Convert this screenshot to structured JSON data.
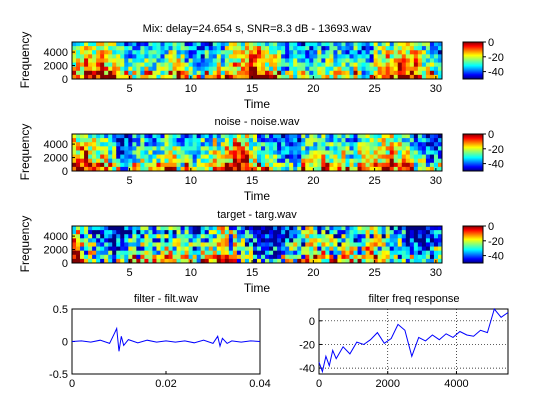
{
  "spectrograms": [
    {
      "title": "Mix: delay=24.654 s, SNR=8.3 dB - 13693.wav",
      "ylabel": "Frequency",
      "xlabel": "Time",
      "x_ticks": [
        "5",
        "10",
        "15",
        "20",
        "25",
        "30"
      ],
      "y_ticks": [
        "4000",
        "2000",
        "0"
      ],
      "colorbar_ticks": [
        "0",
        "-20",
        "-40"
      ]
    },
    {
      "title": "noise - noise.wav",
      "ylabel": "Frequency",
      "xlabel": "Time",
      "x_ticks": [
        "5",
        "10",
        "15",
        "20",
        "25",
        "30"
      ],
      "y_ticks": [
        "4000",
        "2000",
        "0"
      ],
      "colorbar_ticks": [
        "0",
        "-20",
        "-40"
      ]
    },
    {
      "title": "target - targ.wav",
      "ylabel": "Frequency",
      "xlabel": "Time",
      "x_ticks": [
        "5",
        "10",
        "15",
        "20",
        "25",
        "30"
      ],
      "y_ticks": [
        "4000",
        "2000",
        "0"
      ],
      "colorbar_ticks": [
        "0",
        "-20",
        "-40"
      ]
    }
  ],
  "filter_plot": {
    "title": "filter - filt.wav",
    "x_ticks": [
      "0",
      "0.02",
      "0.04"
    ],
    "y_ticks": [
      "0.5",
      "0",
      "-0.5"
    ]
  },
  "freq_plot": {
    "title": "filter freq response",
    "x_ticks": [
      "0",
      "2000",
      "4000"
    ],
    "y_ticks": [
      "0",
      "-20",
      "-40"
    ]
  },
  "colors": {
    "line": "#0000ff",
    "axes": "#000000",
    "background": "#ffffff"
  },
  "chart_data": [
    {
      "type": "heatmap",
      "title": "Mix: delay=24.654 s, SNR=8.3 dB - 13693.wav",
      "xlabel": "Time",
      "ylabel": "Frequency",
      "xlim": [
        0.3,
        30.5
      ],
      "ylim": [
        0,
        5500
      ],
      "clim": [
        -50,
        0
      ],
      "colormap": "jet"
    },
    {
      "type": "heatmap",
      "title": "noise - noise.wav",
      "xlabel": "Time",
      "ylabel": "Frequency",
      "xlim": [
        0.3,
        30.5
      ],
      "ylim": [
        0,
        5500
      ],
      "clim": [
        -50,
        0
      ],
      "colormap": "jet"
    },
    {
      "type": "heatmap",
      "title": "target - targ.wav",
      "xlabel": "Time",
      "ylabel": "Frequency",
      "xlim": [
        0.3,
        30.5
      ],
      "ylim": [
        0,
        5500
      ],
      "clim": [
        -50,
        0
      ],
      "colormap": "jet"
    },
    {
      "type": "line",
      "title": "filter - filt.wav",
      "xlim": [
        0,
        0.04
      ],
      "ylim": [
        -0.5,
        0.5
      ],
      "x": [
        0,
        0.002,
        0.004,
        0.006,
        0.008,
        0.009,
        0.0095,
        0.01,
        0.0105,
        0.011,
        0.012,
        0.014,
        0.016,
        0.018,
        0.02,
        0.022,
        0.024,
        0.026,
        0.028,
        0.03,
        0.031,
        0.0315,
        0.032,
        0.033,
        0.034,
        0.036,
        0.038,
        0.04
      ],
      "y": [
        0,
        0.01,
        -0.01,
        0.02,
        -0.03,
        0.12,
        0.2,
        -0.15,
        0.08,
        -0.06,
        0.03,
        -0.02,
        0.02,
        -0.01,
        0.01,
        -0.01,
        0.01,
        -0.02,
        0.02,
        -0.03,
        0.08,
        -0.07,
        0.05,
        -0.03,
        0.01,
        -0.01,
        0.01,
        0
      ]
    },
    {
      "type": "line",
      "title": "filter freq response",
      "xlim": [
        0,
        5500
      ],
      "ylim": [
        -45,
        10
      ],
      "grid": true,
      "x": [
        0,
        100,
        200,
        300,
        400,
        500,
        700,
        900,
        1100,
        1300,
        1500,
        1700,
        1900,
        2100,
        2300,
        2500,
        2700,
        2900,
        3100,
        3300,
        3500,
        3700,
        3900,
        4100,
        4300,
        4500,
        4700,
        4900,
        5100,
        5300,
        5500
      ],
      "y": [
        -35,
        -43,
        -30,
        -38,
        -25,
        -32,
        -22,
        -28,
        -18,
        -20,
        -16,
        -10,
        -19,
        -15,
        -3,
        -8,
        -30,
        -14,
        -17,
        -12,
        -16,
        -11,
        -14,
        -9,
        -12,
        -13,
        -8,
        -10,
        10,
        3,
        7
      ]
    }
  ]
}
